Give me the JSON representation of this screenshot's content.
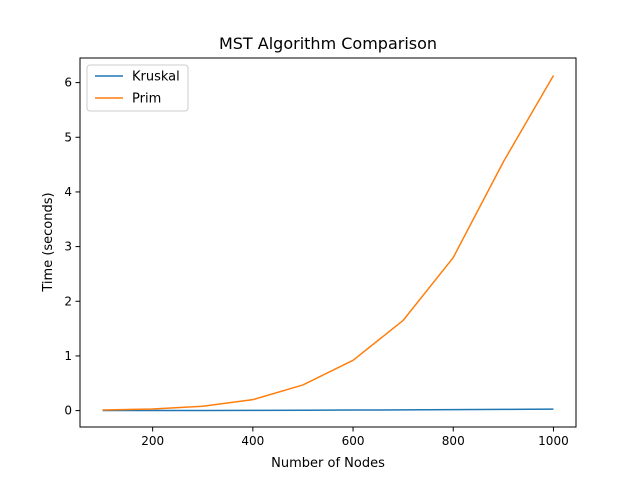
{
  "chart_data": {
    "type": "line",
    "title": "MST Algorithm Comparison",
    "xlabel": "Number of Nodes",
    "ylabel": "Time (seconds)",
    "xlim": [
      55,
      1045
    ],
    "ylim": [
      -0.3,
      6.45
    ],
    "xticks": [
      200,
      400,
      600,
      800,
      1000
    ],
    "yticks": [
      0,
      1,
      2,
      3,
      4,
      5,
      6
    ],
    "xtick_labels": [
      "200",
      "400",
      "600",
      "800",
      "1000"
    ],
    "ytick_labels": [
      "0",
      "1",
      "2",
      "3",
      "4",
      "5",
      "6"
    ],
    "grid": false,
    "legend_position": "top-left",
    "x": [
      100,
      200,
      300,
      400,
      500,
      600,
      700,
      800,
      900,
      1000
    ],
    "series": [
      {
        "name": "Kruskal",
        "color": "#1f77b4",
        "values": [
          0.001,
          0.002,
          0.003,
          0.005,
          0.007,
          0.01,
          0.013,
          0.017,
          0.022,
          0.028
        ]
      },
      {
        "name": "Prim",
        "color": "#ff7f0e",
        "values": [
          0.01,
          0.03,
          0.08,
          0.2,
          0.47,
          0.92,
          1.65,
          2.8,
          4.55,
          6.13
        ]
      }
    ]
  }
}
